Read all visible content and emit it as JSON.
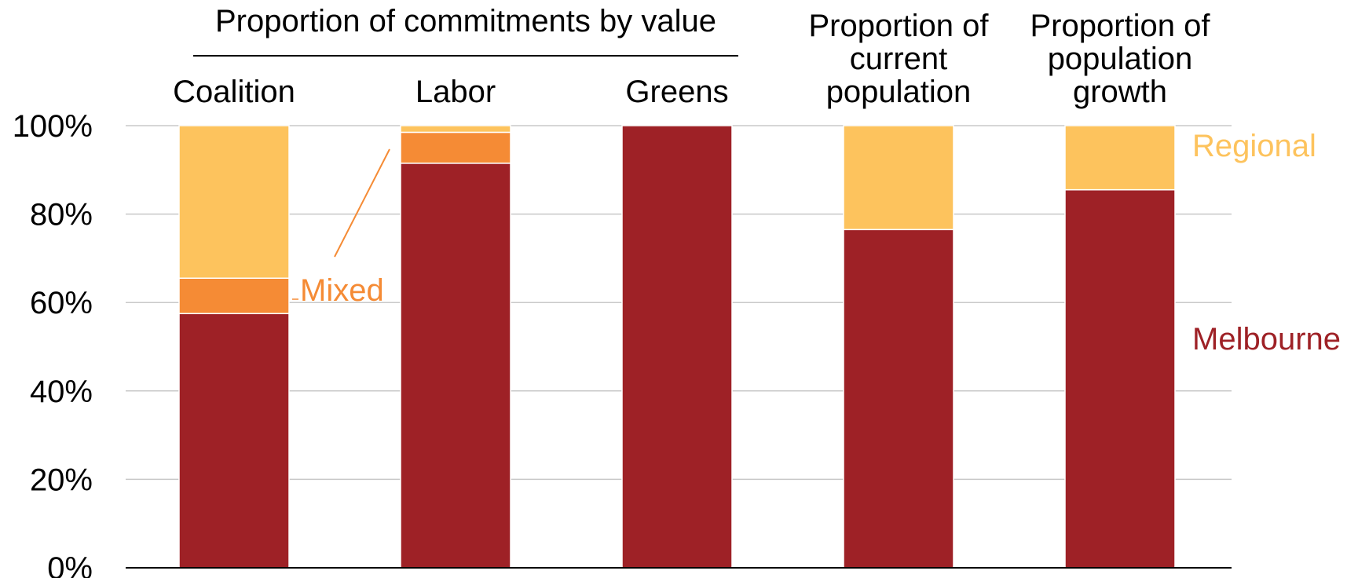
{
  "chart_data": {
    "type": "bar",
    "stacked": true,
    "categories": [
      [
        "Coalition"
      ],
      [
        "Labor"
      ],
      [
        "Greens"
      ],
      [
        "Proportion of",
        "current",
        "population"
      ],
      [
        "Proportion of",
        "population",
        "growth"
      ]
    ],
    "group_header": "Proportion of commitments by value",
    "group_header_spans": [
      "Coalition",
      "Labor",
      "Greens"
    ],
    "series": [
      {
        "name": "Melbourne",
        "color": "#9e2126",
        "values": [
          57.5,
          91.5,
          100,
          76.5,
          85.5
        ]
      },
      {
        "name": "Mixed",
        "color": "#f58b35",
        "values": [
          8,
          7,
          0,
          0,
          0
        ]
      },
      {
        "name": "Regional",
        "color": "#fdc35d",
        "values": [
          34.5,
          1.5,
          0,
          23.5,
          14.5
        ]
      }
    ],
    "ylim": [
      0,
      100
    ],
    "yticks": [
      "0%",
      "20%",
      "40%",
      "60%",
      "80%",
      "100%"
    ],
    "grid": true,
    "labels_position": "right side / inline annotations",
    "xlabel": "",
    "ylabel": ""
  }
}
